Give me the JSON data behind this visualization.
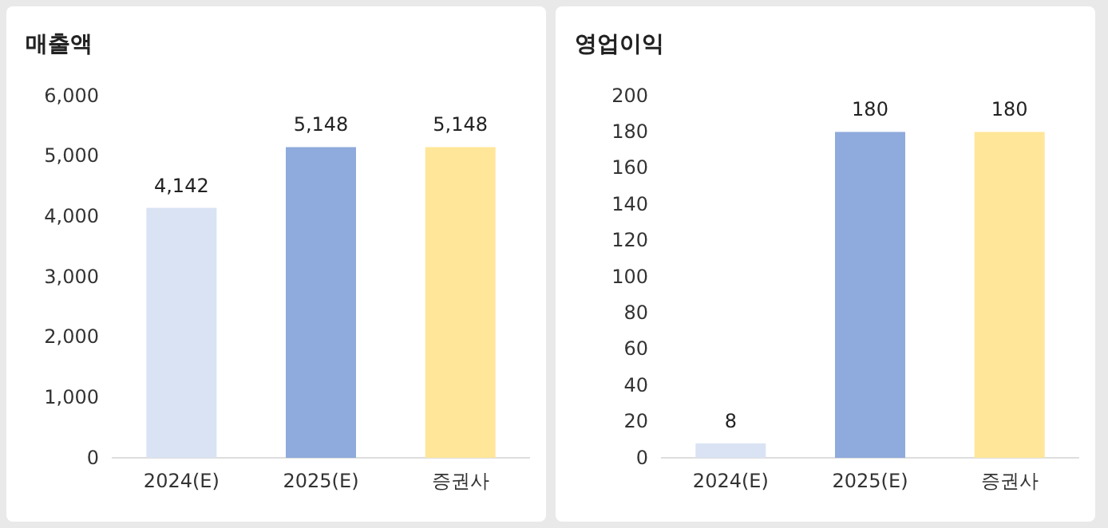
{
  "chart_data": [
    {
      "type": "bar",
      "title": "매출액",
      "categories": [
        "2024(E)",
        "2025(E)",
        "증권사"
      ],
      "values": [
        4142,
        5148,
        5148
      ],
      "colors": [
        "#dae3f3",
        "#8faadc",
        "#ffe699"
      ],
      "value_labels": [
        "4,142",
        "5,148",
        "5,148"
      ],
      "ylim": [
        0,
        6000
      ],
      "yticks": [
        {
          "value": 0,
          "label": "0"
        },
        {
          "value": 1000,
          "label": "1,000"
        },
        {
          "value": 2000,
          "label": "2,000"
        },
        {
          "value": 3000,
          "label": "3,000"
        },
        {
          "value": 4000,
          "label": "4,000"
        },
        {
          "value": 5000,
          "label": "5,000"
        },
        {
          "value": 6000,
          "label": "6,000"
        }
      ]
    },
    {
      "type": "bar",
      "title": "영업이익",
      "categories": [
        "2024(E)",
        "2025(E)",
        "증권사"
      ],
      "values": [
        8,
        180,
        180
      ],
      "colors": [
        "#dae3f3",
        "#8faadc",
        "#ffe699"
      ],
      "data_labels": true,
      "ylim": [
        0,
        200
      ],
      "yticks": [
        0,
        20,
        40,
        60,
        80,
        100,
        120,
        140,
        160,
        180,
        200
      ]
    }
  ]
}
